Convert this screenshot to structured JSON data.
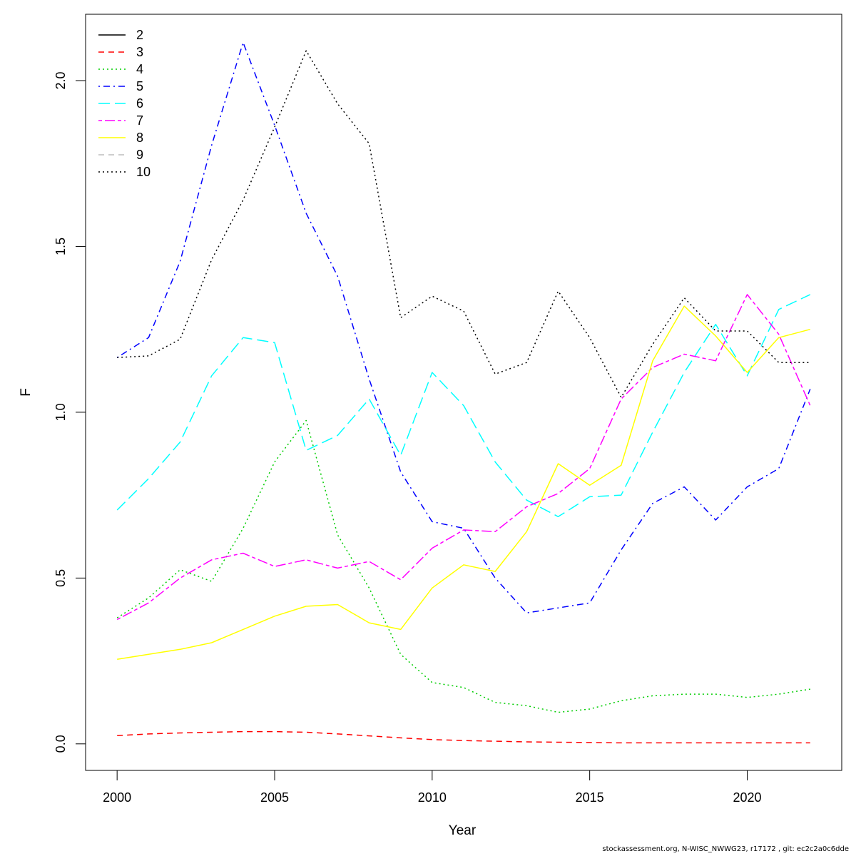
{
  "chart_data": {
    "type": "line",
    "xlabel": "Year",
    "ylabel": "F",
    "xlim": [
      1999,
      2023
    ],
    "ylim": [
      -0.08,
      2.2
    ],
    "x_ticks": [
      2000,
      2005,
      2010,
      2015,
      2020
    ],
    "y_ticks": [
      0.0,
      0.5,
      1.0,
      1.5,
      2.0
    ],
    "y_tick_labels": [
      "0.0",
      "0.5",
      "1.0",
      "1.5",
      "2.0"
    ],
    "grid": false,
    "legend_position": "top-left",
    "x": [
      2000,
      2001,
      2002,
      2003,
      2004,
      2005,
      2006,
      2007,
      2008,
      2009,
      2010,
      2011,
      2012,
      2013,
      2014,
      2015,
      2016,
      2017,
      2018,
      2019,
      2020,
      2021,
      2022
    ],
    "series": [
      {
        "name": "2",
        "color": "#000000",
        "dash": "solid",
        "values": null
      },
      {
        "name": "3",
        "color": "#ff0000",
        "dash": "dashed",
        "values": [
          0.025,
          0.03,
          0.033,
          0.035,
          0.037,
          0.037,
          0.035,
          0.03,
          0.024,
          0.018,
          0.013,
          0.01,
          0.008,
          0.006,
          0.005,
          0.004,
          0.003,
          0.003,
          0.003,
          0.003,
          0.003,
          0.003,
          0.003
        ]
      },
      {
        "name": "4",
        "color": "#00cd00",
        "dash": "dotted",
        "values": [
          0.38,
          0.44,
          0.525,
          0.49,
          0.65,
          0.85,
          0.975,
          0.63,
          0.47,
          0.27,
          0.185,
          0.17,
          0.125,
          0.115,
          0.095,
          0.105,
          0.13,
          0.145,
          0.15,
          0.15,
          0.14,
          0.15,
          0.165
        ]
      },
      {
        "name": "5",
        "color": "#0000ff",
        "dash": "dotdash",
        "values": [
          1.165,
          1.225,
          1.455,
          1.805,
          2.115,
          1.865,
          1.6,
          1.41,
          1.1,
          0.82,
          0.67,
          0.65,
          0.5,
          0.395,
          0.41,
          0.425,
          0.585,
          0.725,
          0.775,
          0.675,
          0.775,
          0.83,
          1.07
        ]
      },
      {
        "name": "6",
        "color": "#00ffff",
        "dash": "longdash",
        "values": [
          0.705,
          0.8,
          0.91,
          1.11,
          1.225,
          1.21,
          0.885,
          0.93,
          1.04,
          0.87,
          1.12,
          1.02,
          0.85,
          0.735,
          0.685,
          0.745,
          0.75,
          0.94,
          1.12,
          1.265,
          1.11,
          1.31,
          1.355
        ]
      },
      {
        "name": "7",
        "color": "#ff00ff",
        "dash": "twodash",
        "values": [
          0.375,
          0.425,
          0.5,
          0.555,
          0.575,
          0.535,
          0.555,
          0.53,
          0.55,
          0.495,
          0.59,
          0.645,
          0.64,
          0.715,
          0.755,
          0.83,
          1.04,
          1.135,
          1.175,
          1.155,
          1.355,
          1.235,
          1.02
        ]
      },
      {
        "name": "8",
        "color": "#ffff00",
        "dash": "solid",
        "values": [
          0.255,
          0.27,
          0.285,
          0.305,
          0.345,
          0.385,
          0.415,
          0.42,
          0.365,
          0.345,
          0.47,
          0.54,
          0.52,
          0.64,
          0.845,
          0.78,
          0.84,
          1.155,
          1.32,
          1.23,
          1.12,
          1.225,
          1.25
        ]
      },
      {
        "name": "9",
        "color": "#bebebe",
        "dash": "dashed",
        "values": null
      },
      {
        "name": "10",
        "color": "#000000",
        "dash": "dotted",
        "values": [
          1.165,
          1.17,
          1.22,
          1.46,
          1.64,
          1.86,
          2.09,
          1.93,
          1.81,
          1.285,
          1.35,
          1.305,
          1.115,
          1.15,
          1.365,
          1.225,
          1.045,
          1.205,
          1.345,
          1.245,
          1.245,
          1.15,
          1.15
        ]
      }
    ]
  },
  "footer": "stockassessment.org, N-WISC_NWWG23, r17172 , git: ec2c2a0c6dde"
}
